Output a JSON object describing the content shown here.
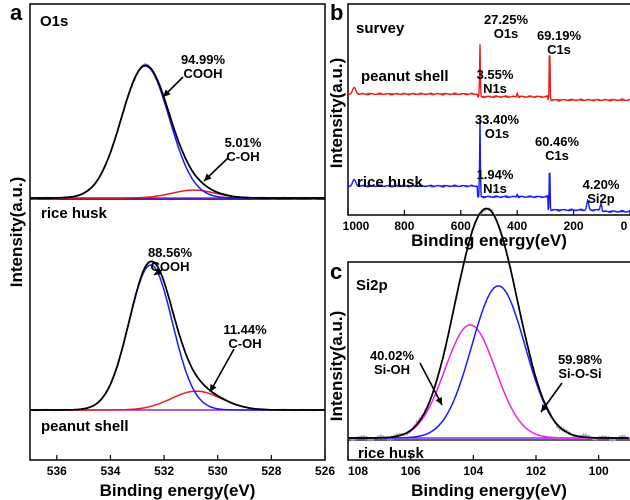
{
  "colors": {
    "raw": "#a6a6a6",
    "envelope": "#000000",
    "component_1": "#1a1aff",
    "component_2": "#e81e1e",
    "component_si_oh": "#ee22ee",
    "baseline": "#8a2be2",
    "survey_peanut": "#e81e1e",
    "survey_rice": "#1a1aff"
  },
  "chart_data": [
    {
      "id": "a",
      "panel_label": "a",
      "panel_title": "O1s",
      "type": "line",
      "xlabel": "Binding energy(eV)",
      "ylabel": "Intensity(a.u.)",
      "xlim": [
        537,
        526
      ],
      "x_ticks": [
        536,
        534,
        532,
        530,
        528,
        526
      ],
      "subplots": [
        {
          "sample": "rice husk",
          "peaks": [
            {
              "label": "COOH",
              "percent": "94.99%",
              "center": 532.7,
              "fwhm": 2.1,
              "height": 1.0
            },
            {
              "label": "C-OH",
              "percent": "5.01%",
              "center": 530.9,
              "fwhm": 1.9,
              "height": 0.06
            }
          ]
        },
        {
          "sample": "peanut shell",
          "peaks": [
            {
              "label": "COOH",
              "percent": "88.56%",
              "center": 532.5,
              "fwhm": 1.9,
              "height": 1.0
            },
            {
              "label": "C-OH",
              "percent": "11.44%",
              "center": 530.8,
              "fwhm": 2.2,
              "height": 0.13
            }
          ]
        }
      ]
    },
    {
      "id": "b",
      "panel_label": "b",
      "panel_title": "survey",
      "type": "line",
      "xlabel": "Binding energy(eV)",
      "ylabel": "Intensity(a.u.)",
      "xlim": [
        1000,
        0
      ],
      "x_ticks": [
        1000,
        800,
        600,
        400,
        200,
        0
      ],
      "series": [
        {
          "name": "peanut shell",
          "peaks": [
            {
              "element": "O1s",
              "percent": "27.25%",
              "energy": 532
            },
            {
              "element": "N1s",
              "percent": "3.55%",
              "energy": 400
            },
            {
              "element": "C1s",
              "percent": "69.19%",
              "energy": 285
            }
          ]
        },
        {
          "name": "rice husk",
          "peaks": [
            {
              "element": "O1s",
              "percent": "33.40%",
              "energy": 532
            },
            {
              "element": "N1s",
              "percent": "1.94%",
              "energy": 400
            },
            {
              "element": "C1s",
              "percent": "60.46%",
              "energy": 285
            },
            {
              "element": "Si2p",
              "percent": "4.20%",
              "energy": 103
            }
          ]
        }
      ]
    },
    {
      "id": "c",
      "panel_label": "c",
      "panel_title": "Si2p",
      "sample": "rice husk",
      "type": "line",
      "xlabel": "Binding energy(eV)",
      "ylabel": "Intensity(a.u.)",
      "xlim": [
        108,
        99
      ],
      "x_ticks": [
        108,
        106,
        104,
        102,
        100
      ],
      "peaks": [
        {
          "label": "Si-OH",
          "percent": "40.02%",
          "center": 104.1,
          "fwhm": 1.9,
          "height": 0.58
        },
        {
          "label": "Si-O-Si",
          "percent": "59.98%",
          "center": 103.2,
          "fwhm": 2.0,
          "height": 0.78
        }
      ]
    }
  ]
}
